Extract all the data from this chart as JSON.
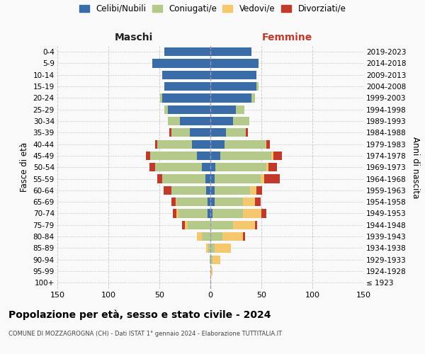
{
  "age_groups": [
    "100+",
    "95-99",
    "90-94",
    "85-89",
    "80-84",
    "75-79",
    "70-74",
    "65-69",
    "60-64",
    "55-59",
    "50-54",
    "45-49",
    "40-44",
    "35-39",
    "30-34",
    "25-29",
    "20-24",
    "15-19",
    "10-14",
    "5-9",
    "0-4"
  ],
  "birth_years": [
    "≤ 1923",
    "1924-1928",
    "1929-1933",
    "1934-1938",
    "1939-1943",
    "1944-1948",
    "1949-1953",
    "1954-1958",
    "1959-1963",
    "1964-1968",
    "1969-1973",
    "1974-1978",
    "1979-1983",
    "1984-1988",
    "1989-1993",
    "1994-1998",
    "1999-2003",
    "2004-2008",
    "2009-2013",
    "2014-2018",
    "2019-2023"
  ],
  "maschi": {
    "celibi": [
      0,
      0,
      0,
      0,
      0,
      0,
      3,
      3,
      4,
      5,
      8,
      13,
      18,
      20,
      30,
      42,
      47,
      45,
      47,
      57,
      45
    ],
    "coniugati": [
      0,
      0,
      1,
      2,
      8,
      22,
      28,
      30,
      34,
      42,
      46,
      46,
      34,
      18,
      12,
      3,
      2,
      0,
      0,
      0,
      0
    ],
    "vedovi": [
      0,
      0,
      0,
      2,
      5,
      3,
      2,
      1,
      0,
      0,
      0,
      0,
      0,
      0,
      0,
      0,
      0,
      0,
      0,
      0,
      0
    ],
    "divorziati": [
      0,
      0,
      0,
      0,
      0,
      3,
      4,
      4,
      8,
      5,
      6,
      4,
      2,
      2,
      0,
      0,
      0,
      0,
      0,
      0,
      0
    ]
  },
  "femmine": {
    "nubili": [
      0,
      0,
      0,
      0,
      0,
      0,
      2,
      4,
      4,
      4,
      5,
      10,
      14,
      15,
      22,
      25,
      40,
      45,
      45,
      47,
      40
    ],
    "coniugate": [
      0,
      0,
      2,
      4,
      12,
      22,
      30,
      28,
      35,
      45,
      50,
      50,
      40,
      20,
      16,
      8,
      4,
      2,
      0,
      0,
      0
    ],
    "vedove": [
      1,
      2,
      8,
      16,
      20,
      22,
      18,
      12,
      6,
      4,
      2,
      2,
      1,
      0,
      0,
      0,
      0,
      0,
      0,
      0,
      0
    ],
    "divorziate": [
      0,
      0,
      0,
      0,
      2,
      2,
      5,
      5,
      6,
      15,
      8,
      8,
      3,
      2,
      0,
      0,
      0,
      0,
      0,
      0,
      0
    ]
  },
  "colors": {
    "celibi": "#3a6ca8",
    "coniugati": "#b5c98a",
    "vedovi": "#f5c86e",
    "divorziati": "#c0392b"
  },
  "legend_labels": [
    "Celibi/Nubili",
    "Coniugati/e",
    "Vedovi/e",
    "Divorziati/e"
  ],
  "xlim": 150,
  "title": "Popolazione per età, sesso e stato civile - 2024",
  "subtitle": "COMUNE DI MOZZAGROGNA (CH) - Dati ISTAT 1° gennaio 2024 - Elaborazione TUTTITALIA.IT",
  "maschi_label": "Maschi",
  "femmine_label": "Femmine",
  "ylabel_left": "Fasce di età",
  "ylabel_right": "Anni di nascita",
  "bg_color": "#f9f9f9"
}
